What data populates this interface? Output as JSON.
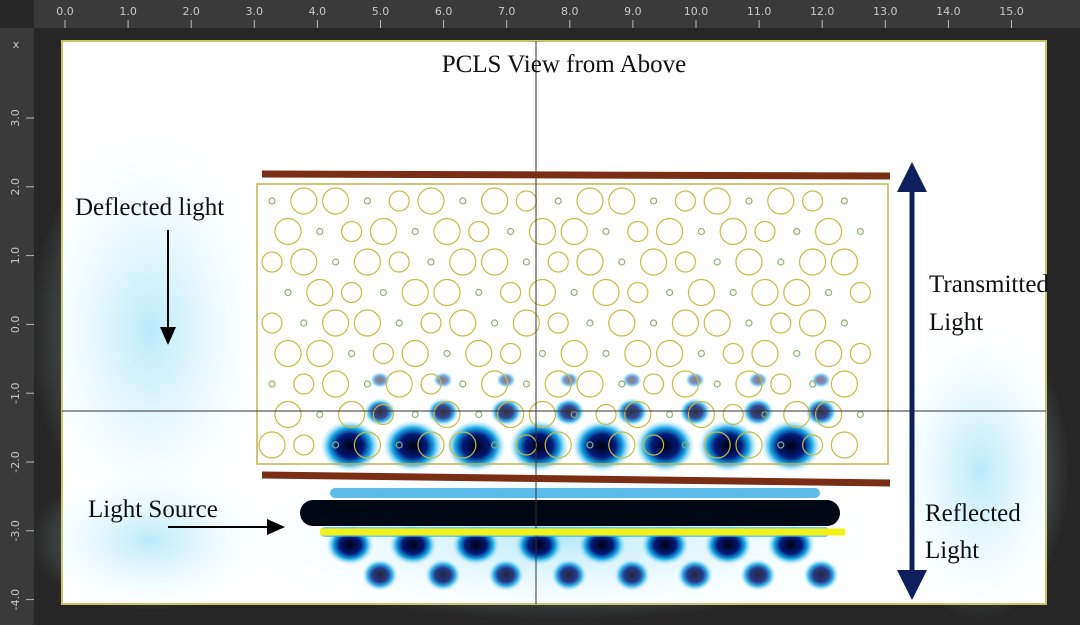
{
  "title": "PCLS View from Above",
  "ruler": {
    "corner": "x",
    "top": [
      "0.0",
      "1.0",
      "2.0",
      "3.0",
      "4.0",
      "5.0",
      "6.0",
      "7.0",
      "8.0",
      "9.0",
      "10.0",
      "11.0",
      "12.0",
      "13.0",
      "14.0",
      "15.0"
    ],
    "left": [
      "3.0",
      "2.0",
      "1.0",
      "0.0",
      "-1.0",
      "-2.0",
      "-3.0",
      "-4.0"
    ]
  },
  "labels": {
    "deflected": "Deflected light",
    "transmitted": [
      "Transmitted",
      "Light"
    ],
    "reflected": [
      "Reflected",
      "Light"
    ],
    "source": "Light Source"
  }
}
